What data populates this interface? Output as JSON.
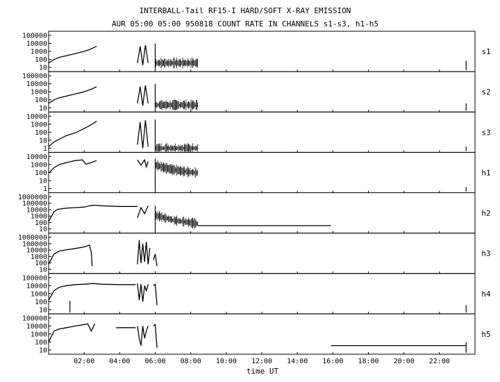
{
  "header": {
    "title": "INTERBALL-Tail RF15-I HARD/SOFT X-RAY EMISSION",
    "subtitle": "AUR 05:00 05:00 950818  COUNT RATE IN CHANNELS s1-s3, h1-h5"
  },
  "chart_data": {
    "type": "line",
    "title": "INTERBALL-Tail RF15-I HARD/SOFT X-RAY EMISSION",
    "subtitle": "AUR 05:00 05:00 950818  COUNT RATE IN CHANNELS s1-s3, h1-h5",
    "xlabel": "time UT",
    "x_unit": "hours UT",
    "xlim": [
      0,
      24
    ],
    "x_ticks": [
      2,
      4,
      6,
      8,
      10,
      12,
      14,
      16,
      18,
      20,
      22
    ],
    "x_tick_labels": [
      "02:00",
      "04:00",
      "06:00",
      "08:00",
      "10:00",
      "12:00",
      "14:00",
      "16:00",
      "18:00",
      "20:00",
      "22:00"
    ],
    "y_scale": "log",
    "grid": false,
    "panels": [
      {
        "name": "s1",
        "ylim": [
          1,
          100000
        ],
        "y_ticks": [
          "100000",
          "10000",
          "1000",
          "100",
          "10"
        ],
        "segments": [
          {
            "x": [
              0.0,
              0.3,
              0.6,
              1.0,
              1.5,
              2.0,
              2.4,
              2.7
            ],
            "y": [
              10,
              30,
              60,
              100,
              200,
              400,
              900,
              2000
            ],
            "noisy": false
          },
          {
            "x": [
              5.0,
              5.15,
              5.3,
              5.45,
              5.6
            ],
            "y": [
              10,
              2000,
              5,
              3000,
              10
            ],
            "noisy": false
          },
          {
            "x": [
              6.0,
              8.4
            ],
            "y": [
              10,
              10
            ],
            "noisy": true
          }
        ],
        "spikes": [
          [
            6.0,
            5000
          ],
          [
            23.5,
            20
          ]
        ]
      },
      {
        "name": "s2",
        "ylim": [
          1,
          100000
        ],
        "y_ticks": [
          "100000",
          "10000",
          "1000",
          "100",
          "10"
        ],
        "segments": [
          {
            "x": [
              0.0,
              0.3,
              0.6,
              1.0,
              1.5,
              2.0,
              2.4,
              2.7
            ],
            "y": [
              10,
              30,
              60,
              100,
              200,
              400,
              900,
              2000
            ],
            "noisy": false
          },
          {
            "x": [
              5.0,
              5.15,
              5.3,
              5.45,
              5.6
            ],
            "y": [
              10,
              2000,
              5,
              3000,
              10
            ],
            "noisy": false
          },
          {
            "x": [
              6.0,
              8.4
            ],
            "y": [
              6,
              6
            ],
            "noisy": true
          }
        ],
        "spikes": [
          [
            6.0,
            5000
          ],
          [
            23.5,
            10
          ]
        ]
      },
      {
        "name": "s3",
        "ylim": [
          1,
          10000
        ],
        "y_ticks": [
          "10000",
          "1000",
          "100",
          "10",
          "1"
        ],
        "segments": [
          {
            "x": [
              0.0,
              0.3,
              0.6,
              1.0,
              1.5,
              2.0,
              2.4,
              2.7
            ],
            "y": [
              3,
              10,
              20,
              50,
              100,
              300,
              800,
              2000
            ],
            "noisy": false
          },
          {
            "x": [
              5.0,
              5.15,
              5.3,
              5.45,
              5.6
            ],
            "y": [
              5,
              1500,
              2,
              2500,
              3
            ],
            "noisy": false
          },
          {
            "x": [
              6.0,
              8.4
            ],
            "y": [
              2,
              2
            ],
            "noisy": true
          }
        ],
        "spikes": [
          [
            6.0,
            3000
          ],
          [
            23.5,
            3
          ]
        ]
      },
      {
        "name": "h1",
        "ylim": [
          1,
          10000
        ],
        "y_ticks": [
          "10000",
          "1000",
          "100",
          "10",
          "1"
        ],
        "segments": [
          {
            "x": [
              0.0,
              0.3,
              0.6,
              1.0,
              1.5,
              1.9,
              2.1,
              2.4,
              2.7
            ],
            "y": [
              100,
              400,
              900,
              1500,
              2500,
              3000,
              1000,
              1500,
              2500
            ],
            "noisy": false
          },
          {
            "x": [
              5.0,
              5.2,
              5.4,
              5.5,
              5.6
            ],
            "y": [
              3000,
              800,
              3000,
              500,
              2000
            ],
            "noisy": false
          },
          {
            "x": [
              6.0,
              6.5,
              7.0,
              7.5,
              8.0,
              8.4
            ],
            "y": [
              800,
              400,
              250,
              170,
              130,
              110
            ],
            "noisy": true
          }
        ],
        "spikes": [
          [
            6.0,
            4000
          ],
          [
            23.5,
            3
          ]
        ]
      },
      {
        "name": "h2",
        "ylim": [
          1,
          1000000
        ],
        "y_ticks": [
          "1000000",
          "100000",
          "10000",
          "1000",
          "100",
          "10"
        ],
        "segments": [
          {
            "x": [
              0.0,
              0.3,
              0.5,
              1.0,
              1.5,
              2.0,
              2.3,
              2.6,
              3.0,
              4.0,
              5.0
            ],
            "y": [
              50,
              2000,
              5000,
              8000,
              10000,
              12000,
              20000,
              25000,
              20000,
              15000,
              15000
            ],
            "noisy": false
          },
          {
            "x": [
              5.0,
              5.2,
              5.4,
              5.6
            ],
            "y": [
              200,
              10000,
              1000,
              20000
            ],
            "noisy": false
          },
          {
            "x": [
              6.0,
              6.5,
              7.0,
              7.5,
              8.0,
              8.4
            ],
            "y": [
              500,
              200,
              80,
              50,
              30,
              20
            ],
            "noisy": true
          },
          {
            "x": [
              8.4,
              15.9
            ],
            "y": [
              10,
              10
            ],
            "noisy": false
          }
        ],
        "spikes": [
          [
            6.0,
            20000
          ]
        ]
      },
      {
        "name": "h3",
        "ylim": [
          1,
          1000000
        ],
        "y_ticks": [
          "1000000",
          "100000",
          "10000",
          "1000",
          "100",
          "10"
        ],
        "segments": [
          {
            "x": [
              0.0,
              0.3,
              0.6,
              1.0,
              1.5,
              2.0,
              2.3,
              2.4,
              2.45
            ],
            "y": [
              20,
              1000,
              3000,
              5000,
              8000,
              15000,
              30000,
              2000,
              10
            ],
            "noisy": false
          },
          {
            "x": [
              5.0,
              5.1,
              5.2,
              5.3,
              5.4,
              5.5,
              5.6,
              5.7
            ],
            "y": [
              20,
              200000,
              30,
              50000,
              50,
              100000,
              20,
              10000
            ],
            "noisy": false
          },
          {
            "x": [
              5.9,
              6.0,
              6.1
            ],
            "y": [
              100,
              1000,
              10
            ],
            "noisy": false
          }
        ],
        "spikes": []
      },
      {
        "name": "h4",
        "ylim": [
          1,
          100000
        ],
        "y_ticks": [
          "100000",
          "10000",
          "1000",
          "100",
          "10"
        ],
        "segments": [
          {
            "x": [
              0.0,
              0.3,
              0.6,
              1.0,
              1.5,
              2.0,
              2.5,
              3.0,
              4.0,
              4.9
            ],
            "y": [
              50,
              1000,
              3000,
              5000,
              7000,
              8000,
              10000,
              8000,
              7000,
              7000
            ],
            "noisy": false
          },
          {
            "x": [
              5.0,
              5.1,
              5.2,
              5.3,
              5.4,
              5.5,
              5.6
            ],
            "y": [
              10000,
              50,
              8000,
              30,
              5000,
              1000,
              8000
            ],
            "noisy": false
          },
          {
            "x": [
              5.9,
              6.0,
              6.1
            ],
            "y": [
              5000,
              8000,
              10
            ],
            "noisy": false
          }
        ],
        "spikes": [
          [
            1.2,
            40
          ],
          [
            23.5,
            10
          ]
        ]
      },
      {
        "name": "h5",
        "ylim": [
          1,
          100000
        ],
        "y_ticks": [
          "100000",
          "10000",
          "1000",
          "100",
          "10"
        ],
        "segments": [
          {
            "x": [
              0.0,
              0.3,
              0.6,
              1.0,
              1.5,
              2.0,
              2.2,
              2.4,
              2.6
            ],
            "y": [
              30,
              1000,
              2000,
              3000,
              5000,
              8000,
              10000,
              1000,
              10000
            ],
            "noisy": false
          },
          {
            "x": [
              3.8,
              4.9
            ],
            "y": [
              3000,
              3000
            ],
            "noisy": false
          },
          {
            "x": [
              5.0,
              5.1,
              5.2,
              5.3,
              5.4,
              5.5,
              5.6
            ],
            "y": [
              5000,
              100,
              10,
              5000,
              100,
              1000,
              5000
            ],
            "noisy": false
          },
          {
            "x": [
              5.9,
              6.0,
              6.1
            ],
            "y": [
              5000,
              8000,
              5
            ],
            "noisy": false
          },
          {
            "x": [
              15.9,
              23.5
            ],
            "y": [
              10,
              10
            ],
            "noisy": false
          }
        ],
        "spikes": [
          [
            23.5,
            30
          ]
        ]
      }
    ]
  }
}
